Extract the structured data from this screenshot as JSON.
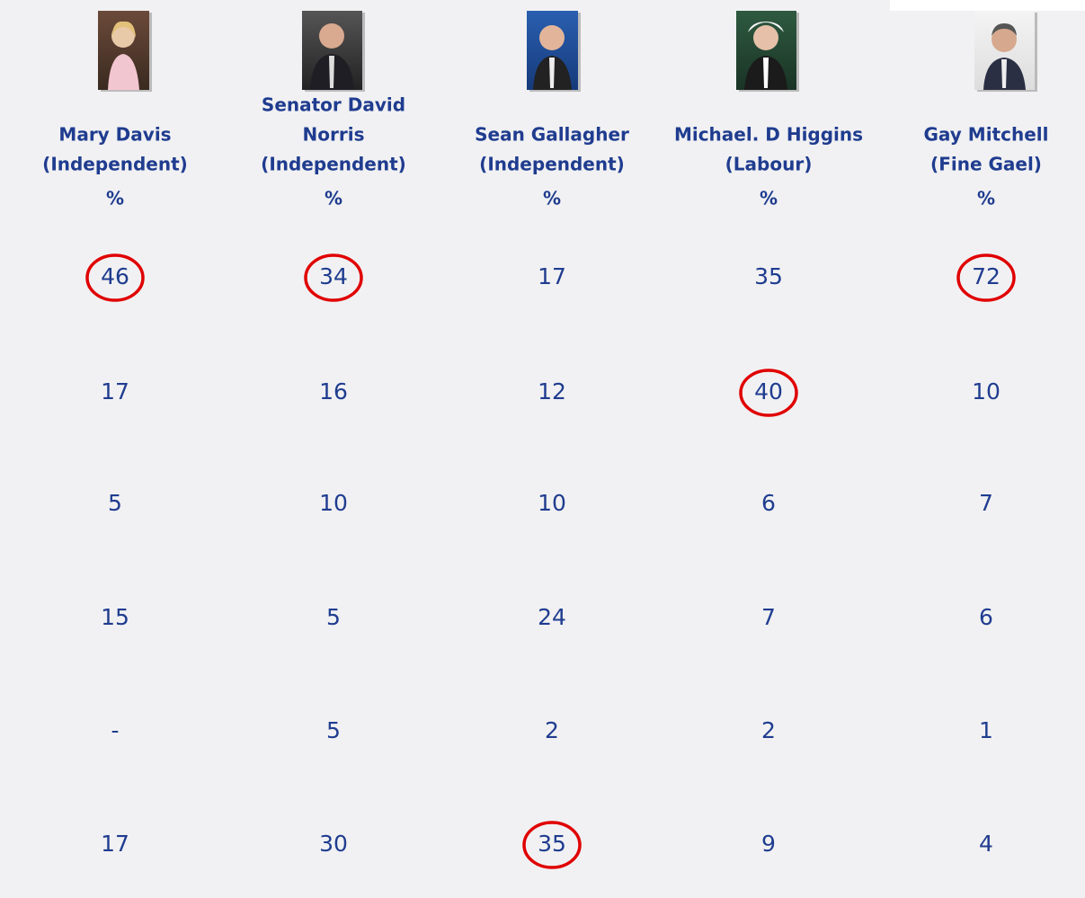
{
  "table": {
    "columns": [
      {
        "name_lines": [
          "Mary Davis"
        ],
        "party": "(Independent)",
        "unit": "%"
      },
      {
        "name_lines": [
          "Senator David",
          "Norris"
        ],
        "party": "(Independent)",
        "unit": "%"
      },
      {
        "name_lines": [
          "Sean Gallagher"
        ],
        "party": "(Independent)",
        "unit": "%"
      },
      {
        "name_lines": [
          "Michael. D Higgins"
        ],
        "party": "(Labour)",
        "unit": "%"
      },
      {
        "name_lines": [
          "Gay Mitchell"
        ],
        "party": "(Fine Gael)",
        "unit": "%"
      }
    ],
    "rows": [
      [
        {
          "value": 46,
          "circled": true
        },
        {
          "value": 34,
          "circled": true
        },
        {
          "value": 17,
          "circled": false
        },
        {
          "value": 35,
          "circled": false
        },
        {
          "value": 72,
          "circled": true
        }
      ],
      [
        {
          "value": 17,
          "circled": false
        },
        {
          "value": 16,
          "circled": false
        },
        {
          "value": 12,
          "circled": false
        },
        {
          "value": 40,
          "circled": true
        },
        {
          "value": 10,
          "circled": false
        }
      ],
      [
        {
          "value": 5,
          "circled": false
        },
        {
          "value": 10,
          "circled": false
        },
        {
          "value": 10,
          "circled": false
        },
        {
          "value": 6,
          "circled": false
        },
        {
          "value": 7,
          "circled": false
        }
      ],
      [
        {
          "value": 15,
          "circled": false
        },
        {
          "value": 5,
          "circled": false
        },
        {
          "value": 24,
          "circled": false
        },
        {
          "value": 7,
          "circled": false
        },
        {
          "value": 6,
          "circled": false
        }
      ],
      [
        {
          "value": "-",
          "circled": false
        },
        {
          "value": 5,
          "circled": false
        },
        {
          "value": 2,
          "circled": false
        },
        {
          "value": 2,
          "circled": false
        },
        {
          "value": 1,
          "circled": false
        }
      ],
      [
        {
          "value": 17,
          "circled": false
        },
        {
          "value": 30,
          "circled": false
        },
        {
          "value": 35,
          "circled": true
        },
        {
          "value": 9,
          "circled": false
        },
        {
          "value": 4,
          "circled": false
        }
      ]
    ]
  }
}
